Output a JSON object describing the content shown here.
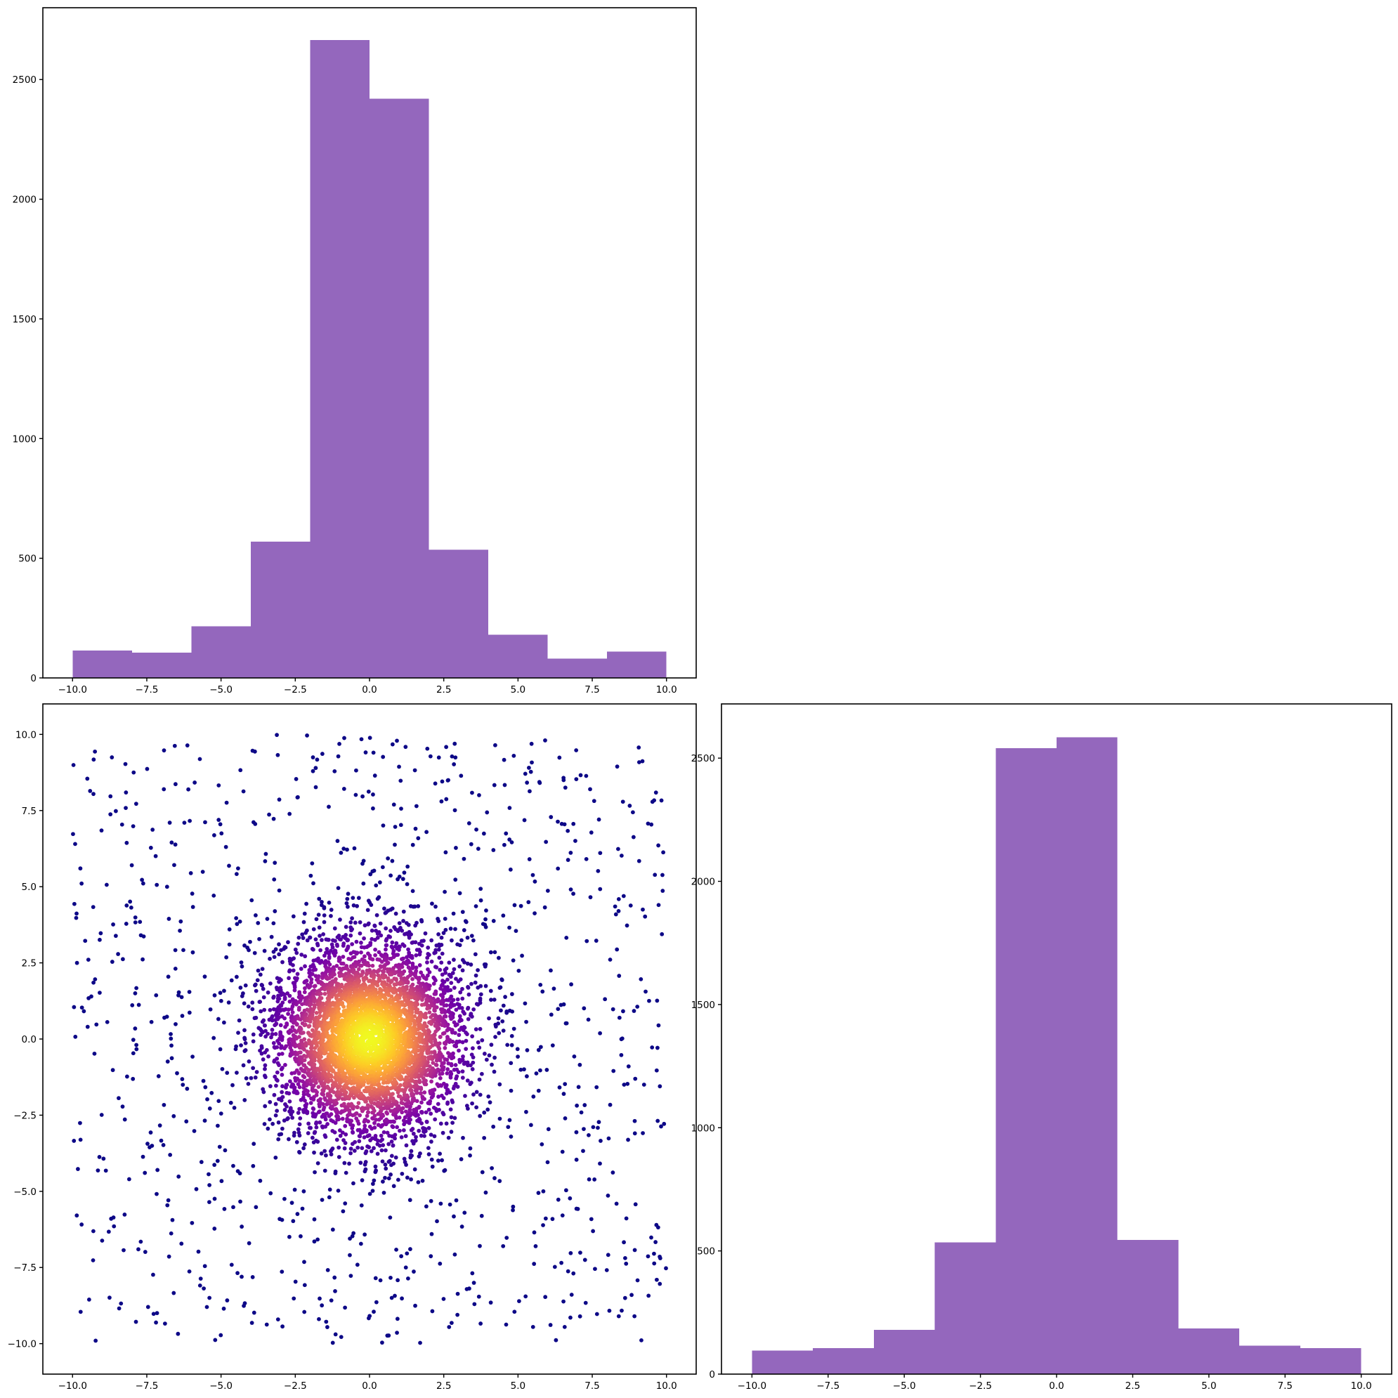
{
  "colors": {
    "hist": "#9467bd",
    "colormap": [
      "#0d0887",
      "#46039f",
      "#7201a8",
      "#9c179e",
      "#bd3786",
      "#d8576b",
      "#ed7953",
      "#fb9f3a",
      "#fdca26",
      "#f0f921"
    ],
    "colormap_name": "plasma"
  },
  "chart_data": [
    {
      "id": "top-left",
      "type": "bar",
      "subtype": "histogram",
      "title": "",
      "xlabel": "",
      "ylabel": "",
      "bin_edges": [
        -10,
        -8,
        -6,
        -4,
        -2,
        0,
        2,
        4,
        6,
        8,
        10
      ],
      "values": [
        115,
        105,
        215,
        570,
        2665,
        2420,
        535,
        180,
        80,
        110
      ],
      "xlim": [
        -11,
        11
      ],
      "ylim": [
        0,
        2800
      ],
      "xticks": [
        -10,
        -7.5,
        -5,
        -2.5,
        0,
        2.5,
        5,
        7.5,
        10
      ],
      "xtick_labels": [
        "−10.0",
        "−7.5",
        "−5.0",
        "−2.5",
        "0.0",
        "2.5",
        "5.0",
        "7.5",
        "10.0"
      ],
      "yticks": [
        0,
        500,
        1000,
        1500,
        2000,
        2500
      ],
      "ytick_labels": [
        "0",
        "500",
        "1000",
        "1500",
        "2000",
        "2500"
      ],
      "grid": false,
      "legend": "none"
    },
    {
      "id": "bottom-left",
      "type": "scatter",
      "title": "",
      "xlabel": "",
      "ylabel": "",
      "description_of_points": "about 1000 points drawn uniformly in [-10,10]×[-10,10] plus about 5000 points in a Gaussian cluster centred at (0,0) with standard deviation about 1.6; each point colored by local density with the plasma colormap (dark purple = low, yellow = high)",
      "uniform_count": 1000,
      "cluster_count": 5000,
      "cluster_center": [
        0,
        0
      ],
      "cluster_sd": 1.6,
      "range": [
        -10,
        10
      ],
      "xlim": [
        -11,
        11
      ],
      "ylim": [
        -11,
        11
      ],
      "xticks": [
        -10,
        -7.5,
        -5,
        -2.5,
        0,
        2.5,
        5,
        7.5,
        10
      ],
      "xtick_labels": [
        "−10.0",
        "−7.5",
        "−5.0",
        "−2.5",
        "0.0",
        "2.5",
        "5.0",
        "7.5",
        "10.0"
      ],
      "yticks": [
        -10,
        -7.5,
        -5,
        -2.5,
        0,
        2.5,
        5,
        7.5,
        10
      ],
      "ytick_labels": [
        "−10.0",
        "−7.5",
        "−5.0",
        "−2.5",
        "0.0",
        "2.5",
        "5.0",
        "7.5",
        "10.0"
      ],
      "grid": false,
      "legend": "none"
    },
    {
      "id": "bottom-right",
      "type": "bar",
      "subtype": "histogram",
      "title": "",
      "xlabel": "",
      "ylabel": "",
      "bin_edges": [
        -10,
        -8,
        -6,
        -4,
        -2,
        0,
        2,
        4,
        6,
        8,
        10
      ],
      "values": [
        95,
        105,
        180,
        535,
        2540,
        2585,
        545,
        185,
        115,
        105
      ],
      "xlim": [
        -11,
        11
      ],
      "ylim": [
        0,
        2720
      ],
      "xticks": [
        -10,
        -7.5,
        -5,
        -2.5,
        0,
        2.5,
        5,
        7.5,
        10
      ],
      "xtick_labels": [
        "−10.0",
        "−7.5",
        "−5.0",
        "−2.5",
        "0.0",
        "2.5",
        "5.0",
        "7.5",
        "10.0"
      ],
      "yticks": [
        0,
        500,
        1000,
        1500,
        2000,
        2500
      ],
      "ytick_labels": [
        "0",
        "500",
        "1000",
        "1500",
        "2000",
        "2500"
      ],
      "grid": false,
      "legend": "none"
    }
  ]
}
